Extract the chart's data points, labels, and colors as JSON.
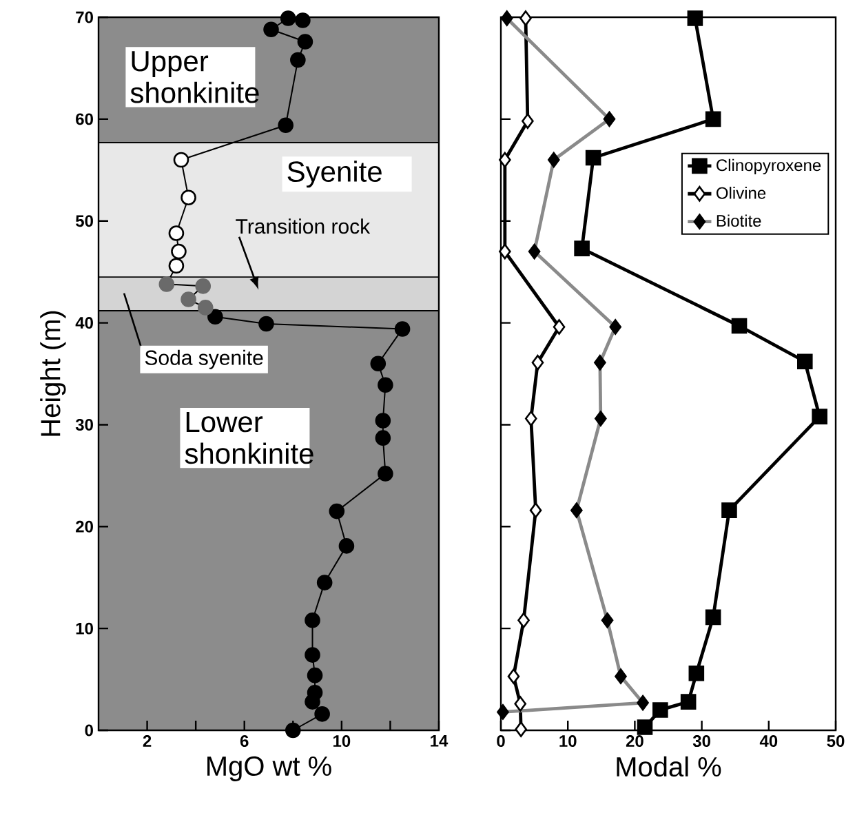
{
  "chart_data": [
    {
      "type": "line",
      "xlabel": "MgO wt %",
      "ylabel": "Height (m)",
      "xlim": [
        0,
        14
      ],
      "ylim": [
        0,
        70
      ],
      "xticks": [
        2,
        {
          "value": 4,
          "label": null
        },
        6,
        {
          "value": 8,
          "label": null
        },
        10,
        {
          "value": 12,
          "label": null
        },
        14
      ],
      "yticks": [
        0,
        10,
        20,
        30,
        40,
        50,
        60,
        70
      ],
      "marker": "circle",
      "line_style": "solid",
      "bands": [
        {
          "axis": "y",
          "from": 0,
          "to": 41.2,
          "label": "Lower shonkinite",
          "color": "#8c8c8c"
        },
        {
          "axis": "y",
          "from": 41.2,
          "to": 44.5,
          "label": "Transition rock",
          "color": "#d4d4d4"
        },
        {
          "axis": "y",
          "from": 44.5,
          "to": 57.7,
          "label": "Syenite",
          "color": "#e8e8e8"
        },
        {
          "axis": "y",
          "from": 57.7,
          "to": 70,
          "label": "Upper shonkinite",
          "color": "#8c8c8c"
        }
      ],
      "annotations": [
        "Soda syenite"
      ],
      "series": [
        {
          "color": "#000000",
          "x": [
            8.0,
            9.2,
            8.8,
            8.9,
            8.9,
            8.8,
            8.8,
            9.3,
            10.2,
            9.8,
            11.8,
            11.7,
            11.7,
            11.8,
            11.5,
            12.5,
            6.9,
            4.8,
            4.4,
            3.7,
            4.3,
            2.8,
            3.2,
            3.3,
            3.2,
            3.7,
            3.4,
            7.7,
            8.2,
            8.5,
            7.1,
            7.8,
            8.4
          ],
          "values": [
            0,
            1.6,
            2.8,
            3.7,
            5.4,
            7.4,
            10.8,
            14.5,
            18.1,
            21.5,
            25.2,
            28.7,
            30.4,
            33.9,
            36.0,
            39.4,
            39.9,
            40.6,
            41.5,
            42.3,
            43.6,
            43.8,
            45.6,
            47.0,
            48.8,
            52.3,
            56.0,
            59.4,
            65.8,
            67.6,
            68.8,
            69.9,
            69.7
          ],
          "colors": [
            "#000000",
            "#000000",
            "#000000",
            "#000000",
            "#000000",
            "#000000",
            "#000000",
            "#000000",
            "#000000",
            "#000000",
            "#000000",
            "#000000",
            "#000000",
            "#000000",
            "#000000",
            "#000000",
            "#000000",
            "#000000",
            "#6a6a6a",
            "#6a6a6a",
            "#6a6a6a",
            "#6a6a6a",
            "#ffffff",
            "#ffffff",
            "#ffffff",
            "#ffffff",
            "#ffffff",
            "#000000",
            "#000000",
            "#000000",
            "#000000",
            "#000000",
            "#000000"
          ]
        }
      ]
    },
    {
      "type": "line",
      "xlabel": "Modal %",
      "xlim": [
        0,
        50
      ],
      "ylim": [
        0,
        70
      ],
      "xticks": [
        0,
        10,
        20,
        30,
        40,
        50
      ],
      "yticks": [
        0,
        10,
        20,
        30,
        40,
        50,
        60,
        70
      ],
      "tick_labels": "x",
      "legend": "right",
      "line_style": "solid",
      "series": [
        {
          "name": "Clinopyroxene",
          "color": "#000000",
          "marker": "square",
          "x": [
            29.0,
            31.7,
            13.8,
            12.1,
            35.6,
            45.4,
            47.6,
            34.1,
            31.7,
            29.2,
            28.0,
            23.8,
            21.5
          ],
          "values": [
            69.9,
            60.0,
            56.2,
            47.3,
            39.7,
            36.2,
            30.8,
            21.6,
            11.1,
            5.6,
            2.8,
            2.0,
            0.3
          ]
        },
        {
          "name": "Olivine",
          "color": "#000000",
          "marker": "diamond",
          "colors": [
            "#ffffff",
            "#ffffff",
            "#ffffff",
            "#ffffff",
            "#ffffff",
            "#ffffff",
            "#ffffff",
            "#ffffff",
            "#ffffff",
            "#ffffff",
            "#ffffff",
            "#ffffff"
          ],
          "x": [
            3.7,
            4.0,
            0.6,
            0.6,
            8.7,
            5.5,
            4.5,
            5.2,
            3.4,
            1.9,
            2.9,
            3.0
          ],
          "values": [
            69.9,
            59.8,
            56.0,
            47.0,
            39.6,
            36.1,
            30.6,
            21.6,
            10.8,
            5.3,
            2.6,
            0.1
          ]
        },
        {
          "name": "Biotite",
          "color": "#8a8a8a",
          "marker": "diamond",
          "colors": [
            "#000000",
            "#000000",
            "#000000",
            "#000000",
            "#000000",
            "#000000",
            "#000000",
            "#000000",
            "#000000",
            "#000000",
            "#000000",
            "#000000"
          ],
          "x": [
            0.9,
            16.2,
            7.9,
            5.0,
            17.1,
            14.8,
            14.9,
            11.3,
            15.9,
            17.9,
            21.2,
            0.3
          ],
          "values": [
            69.9,
            60.0,
            56.0,
            47.0,
            39.6,
            36.1,
            30.6,
            21.6,
            10.8,
            5.3,
            2.7,
            1.8
          ]
        }
      ]
    }
  ]
}
